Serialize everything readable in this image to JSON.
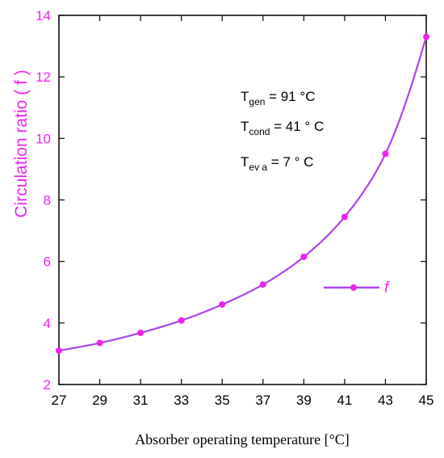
{
  "colors": {
    "accent": "#ee22ee",
    "series_line": "#aa44ee",
    "axis": "#000000"
  },
  "chart_data": {
    "type": "line",
    "xlabel": "Absorber operating temperature [°C]",
    "ylabel": "Circulation ratio ( f )",
    "xlim": [
      27,
      45
    ],
    "ylim": [
      2,
      14
    ],
    "x_ticks": [
      "27",
      "29",
      "31",
      "33",
      "35",
      "37",
      "39",
      "41",
      "43",
      "45"
    ],
    "y_ticks": [
      "2",
      "4",
      "6",
      "8",
      "10",
      "12",
      "14"
    ],
    "grid": false,
    "legend_position": "middle-right",
    "series": [
      {
        "name": "f",
        "x": [
          27,
          29,
          31,
          33,
          35,
          37,
          39,
          41,
          43,
          45
        ],
        "y": [
          3.1,
          3.35,
          3.68,
          4.08,
          4.6,
          5.25,
          6.15,
          7.45,
          9.5,
          13.3
        ]
      }
    ],
    "annotations": [
      {
        "base": "T",
        "sub": "gen",
        "rest": " = 91 °C"
      },
      {
        "base": "T",
        "sub": "cond",
        "rest": " = 41 ° C"
      },
      {
        "base": "T",
        "sub": "ev a",
        "rest": " = 7 ° C"
      }
    ]
  }
}
